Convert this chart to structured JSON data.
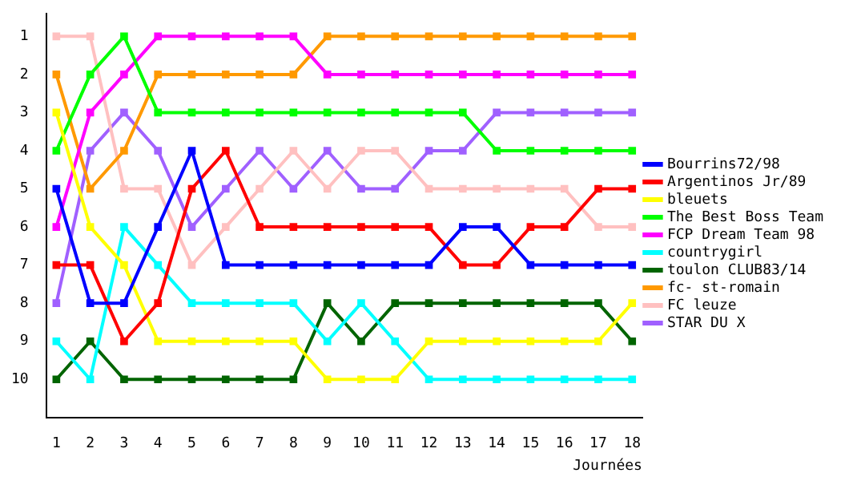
{
  "chart_data": {
    "type": "line",
    "xlabel": "Journées",
    "x": [
      1,
      2,
      3,
      4,
      5,
      6,
      7,
      8,
      9,
      10,
      11,
      12,
      13,
      14,
      15,
      16,
      17,
      18
    ],
    "xlim": [
      0.7,
      18.3
    ],
    "xticks": [
      1,
      2,
      3,
      4,
      5,
      6,
      7,
      8,
      9,
      10,
      11,
      12,
      13,
      14,
      15,
      16,
      17,
      18
    ],
    "ylim": [
      11,
      0.4
    ],
    "yticks": [
      1,
      2,
      3,
      4,
      5,
      6,
      7,
      8,
      9,
      10
    ],
    "grid": false,
    "legend": "right",
    "marker": "square",
    "line_style": "solid",
    "series": [
      {
        "name": "Bourrins72/98",
        "color": "#0000ff",
        "values": [
          5,
          8,
          8,
          6,
          4,
          7,
          7,
          7,
          7,
          7,
          7,
          7,
          6,
          6,
          7,
          7,
          7,
          7
        ]
      },
      {
        "name": "Argentinos Jr/89",
        "color": "#ff0000",
        "values": [
          7,
          7,
          9,
          8,
          5,
          4,
          6,
          6,
          6,
          6,
          6,
          6,
          7,
          7,
          6,
          6,
          5,
          5
        ]
      },
      {
        "name": "bleuets",
        "color": "#ffff00",
        "values": [
          3,
          6,
          7,
          9,
          9,
          9,
          9,
          9,
          10,
          10,
          10,
          9,
          9,
          9,
          9,
          9,
          9,
          8
        ]
      },
      {
        "name": "The Best Boss Team",
        "color": "#00ff00",
        "values": [
          4,
          2,
          1,
          3,
          3,
          3,
          3,
          3,
          3,
          3,
          3,
          3,
          3,
          4,
          4,
          4,
          4,
          4
        ]
      },
      {
        "name": "FCP Dream Team 98",
        "color": "#ff00ff",
        "values": [
          6,
          3,
          2,
          1,
          1,
          1,
          1,
          1,
          2,
          2,
          2,
          2,
          2,
          2,
          2,
          2,
          2,
          2
        ]
      },
      {
        "name": "countrygirl",
        "color": "#00ffff",
        "values": [
          9,
          10,
          6,
          7,
          8,
          8,
          8,
          8,
          9,
          8,
          9,
          10,
          10,
          10,
          10,
          10,
          10,
          10
        ]
      },
      {
        "name": "toulon CLUB83/14",
        "color": "#006400",
        "values": [
          10,
          9,
          10,
          10,
          10,
          10,
          10,
          10,
          8,
          9,
          8,
          8,
          8,
          8,
          8,
          8,
          8,
          9
        ]
      },
      {
        "name": "fc- st-romain",
        "color": "#ff9900",
        "values": [
          2,
          5,
          4,
          2,
          2,
          2,
          2,
          2,
          1,
          1,
          1,
          1,
          1,
          1,
          1,
          1,
          1,
          1
        ]
      },
      {
        "name": "FC leuze",
        "color": "#ffc0c0",
        "values": [
          1,
          1,
          5,
          5,
          7,
          6,
          5,
          4,
          5,
          4,
          4,
          5,
          5,
          5,
          5,
          5,
          6,
          6
        ]
      },
      {
        "name": "STAR DU X",
        "color": "#a060ff",
        "values": [
          8,
          4,
          3,
          4,
          6,
          5,
          4,
          5,
          4,
          5,
          5,
          4,
          4,
          3,
          3,
          3,
          3,
          3
        ]
      }
    ]
  }
}
